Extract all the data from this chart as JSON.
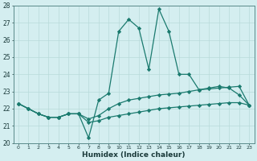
{
  "x": [
    0,
    1,
    2,
    3,
    4,
    5,
    6,
    7,
    8,
    9,
    10,
    11,
    12,
    13,
    14,
    15,
    16,
    17,
    18,
    19,
    20,
    21,
    22,
    23
  ],
  "curve_peak": [
    22.3,
    22.0,
    21.7,
    21.5,
    21.5,
    21.7,
    21.7,
    20.3,
    22.5,
    22.9,
    26.5,
    27.2,
    26.7,
    24.3,
    27.8,
    26.5,
    24.0,
    24.0,
    23.1,
    23.2,
    23.3,
    23.2,
    22.8,
    22.2
  ],
  "curve_mid": [
    22.3,
    22.0,
    21.7,
    21.5,
    21.5,
    21.7,
    21.7,
    21.4,
    21.6,
    22.0,
    22.3,
    22.5,
    22.6,
    22.7,
    22.8,
    22.85,
    22.9,
    23.0,
    23.1,
    23.15,
    23.2,
    23.25,
    23.3,
    22.2
  ],
  "curve_flat": [
    22.3,
    22.0,
    21.7,
    21.5,
    21.5,
    21.7,
    21.7,
    21.2,
    21.3,
    21.5,
    21.6,
    21.7,
    21.8,
    21.9,
    22.0,
    22.05,
    22.1,
    22.15,
    22.2,
    22.25,
    22.3,
    22.35,
    22.35,
    22.2
  ],
  "color": "#1a7a6e",
  "bg_color": "#d4eef0",
  "grid_color": "#b8dada",
  "xlabel": "Humidex (Indice chaleur)",
  "ylim": [
    20,
    28
  ],
  "xlim_min": -0.5,
  "xlim_max": 23.5
}
